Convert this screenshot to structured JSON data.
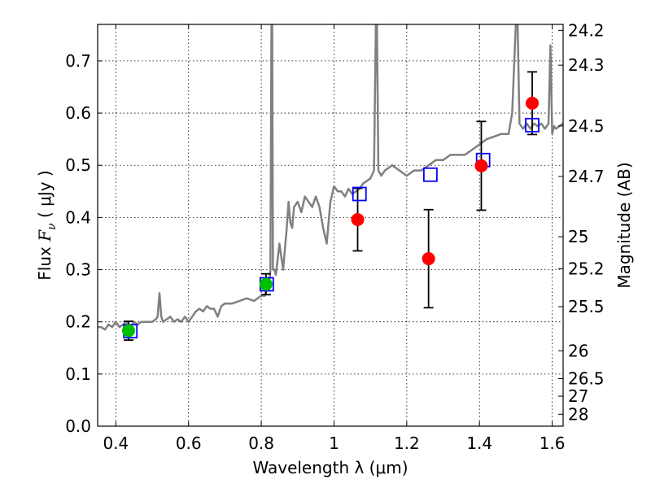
{
  "chart_data": {
    "type": "scatter",
    "xlabel": "Wavelength  λ (μm)",
    "ylabel_prefix": "Flux  ",
    "ylabel_var": "F",
    "ylabel_sub": "ν",
    "ylabel_suffix": "  ( μJy )",
    "y2label": "Magnitude (AB)",
    "xlim": [
      0.35,
      1.63
    ],
    "ylim": [
      0.0,
      0.77
    ],
    "grid": true,
    "x_ticks": [
      {
        "value": 0.4,
        "label": "0.4"
      },
      {
        "value": 0.6,
        "label": "0.6"
      },
      {
        "value": 0.8,
        "label": "0.8"
      },
      {
        "value": 1.0,
        "label": "1"
      },
      {
        "value": 1.2,
        "label": "1.2"
      },
      {
        "value": 1.4,
        "label": "1.4"
      },
      {
        "value": 1.6,
        "label": "1.6"
      }
    ],
    "y_ticks": [
      {
        "value": 0.0,
        "label": "0.0"
      },
      {
        "value": 0.1,
        "label": "0.1"
      },
      {
        "value": 0.2,
        "label": "0.2"
      },
      {
        "value": 0.3,
        "label": "0.3"
      },
      {
        "value": 0.4,
        "label": "0.4"
      },
      {
        "value": 0.5,
        "label": "0.5"
      },
      {
        "value": 0.6,
        "label": "0.6"
      },
      {
        "value": 0.7,
        "label": "0.7"
      }
    ],
    "magnitude_ticks": [
      {
        "mag": 24.2,
        "label": "24.2"
      },
      {
        "mag": 24.3,
        "label": "24.3"
      },
      {
        "mag": 24.5,
        "label": "24.5"
      },
      {
        "mag": 24.7,
        "label": "24.7"
      },
      {
        "mag": 25.0,
        "label": "25"
      },
      {
        "mag": 25.2,
        "label": "25.2"
      },
      {
        "mag": 25.5,
        "label": "25.5"
      },
      {
        "mag": 26.0,
        "label": "26"
      },
      {
        "mag": 26.5,
        "label": "26.5"
      },
      {
        "mag": 27.0,
        "label": "27"
      },
      {
        "mag": 28.0,
        "label": "28"
      }
    ],
    "spectrum": {
      "name": "model-spectrum",
      "color": "#808080",
      "x": [
        0.35,
        0.36,
        0.37,
        0.38,
        0.39,
        0.4,
        0.41,
        0.42,
        0.43,
        0.44,
        0.45,
        0.46,
        0.47,
        0.48,
        0.49,
        0.5,
        0.51,
        0.515,
        0.52,
        0.525,
        0.53,
        0.54,
        0.55,
        0.56,
        0.57,
        0.58,
        0.59,
        0.6,
        0.61,
        0.62,
        0.63,
        0.64,
        0.65,
        0.66,
        0.67,
        0.68,
        0.69,
        0.7,
        0.72,
        0.74,
        0.76,
        0.78,
        0.79,
        0.8,
        0.81,
        0.815,
        0.82,
        0.825,
        0.828,
        0.83,
        0.832,
        0.836,
        0.84,
        0.85,
        0.86,
        0.87,
        0.875,
        0.88,
        0.885,
        0.89,
        0.9,
        0.91,
        0.92,
        0.93,
        0.94,
        0.95,
        0.96,
        0.97,
        0.98,
        0.99,
        1.0,
        1.01,
        1.02,
        1.03,
        1.04,
        1.05,
        1.06,
        1.07,
        1.08,
        1.09,
        1.1,
        1.11,
        1.115,
        1.118,
        1.122,
        1.13,
        1.14,
        1.16,
        1.18,
        1.2,
        1.22,
        1.24,
        1.26,
        1.28,
        1.3,
        1.32,
        1.34,
        1.36,
        1.38,
        1.4,
        1.42,
        1.44,
        1.46,
        1.48,
        1.49,
        1.5,
        1.505,
        1.51,
        1.52,
        1.53,
        1.54,
        1.55,
        1.56,
        1.57,
        1.58,
        1.59,
        1.595,
        1.6,
        1.605,
        1.61,
        1.62,
        1.63
      ],
      "y": [
        0.19,
        0.19,
        0.185,
        0.195,
        0.19,
        0.2,
        0.19,
        0.195,
        0.2,
        0.19,
        0.2,
        0.195,
        0.2,
        0.2,
        0.2,
        0.2,
        0.205,
        0.21,
        0.255,
        0.21,
        0.2,
        0.205,
        0.21,
        0.2,
        0.205,
        0.2,
        0.21,
        0.2,
        0.21,
        0.22,
        0.225,
        0.22,
        0.23,
        0.225,
        0.225,
        0.21,
        0.23,
        0.235,
        0.235,
        0.24,
        0.245,
        0.24,
        0.245,
        0.25,
        0.25,
        0.27,
        0.26,
        0.3,
        0.77,
        0.77,
        0.3,
        0.3,
        0.29,
        0.35,
        0.3,
        0.38,
        0.43,
        0.39,
        0.38,
        0.42,
        0.43,
        0.41,
        0.44,
        0.43,
        0.42,
        0.44,
        0.42,
        0.38,
        0.35,
        0.43,
        0.46,
        0.45,
        0.45,
        0.44,
        0.455,
        0.445,
        0.45,
        0.455,
        0.465,
        0.47,
        0.475,
        0.49,
        0.77,
        0.77,
        0.49,
        0.48,
        0.49,
        0.5,
        0.49,
        0.48,
        0.49,
        0.49,
        0.5,
        0.51,
        0.51,
        0.52,
        0.52,
        0.52,
        0.53,
        0.54,
        0.55,
        0.555,
        0.56,
        0.56,
        0.6,
        0.77,
        0.77,
        0.58,
        0.57,
        0.58,
        0.57,
        0.58,
        0.575,
        0.58,
        0.57,
        0.58,
        0.73,
        0.56,
        0.575,
        0.57,
        0.575,
        0.58
      ]
    },
    "model_points": {
      "name": "model-photometry",
      "marker": "open-square",
      "color": "#0000ff",
      "points": [
        {
          "x": 0.44,
          "y": 0.182
        },
        {
          "x": 0.815,
          "y": 0.272
        },
        {
          "x": 1.07,
          "y": 0.445
        },
        {
          "x": 1.265,
          "y": 0.482
        },
        {
          "x": 1.41,
          "y": 0.51
        },
        {
          "x": 1.545,
          "y": 0.577
        }
      ]
    },
    "green_points": {
      "name": "observed-flux-green",
      "marker": "filled-circle",
      "color": "#00bf00",
      "points": [
        {
          "x": 0.435,
          "y": 0.183,
          "yerr": 0.018
        },
        {
          "x": 0.813,
          "y": 0.272,
          "yerr": 0.02
        }
      ]
    },
    "red_points": {
      "name": "observed-flux-red",
      "marker": "filled-circle",
      "color": "#ff0000",
      "points": [
        {
          "x": 1.065,
          "y": 0.396,
          "yerr": 0.06
        },
        {
          "x": 1.26,
          "y": 0.321,
          "yerr": 0.094
        },
        {
          "x": 1.405,
          "y": 0.499,
          "yerr": 0.085
        },
        {
          "x": 1.545,
          "y": 0.619,
          "yerr": 0.06
        }
      ]
    }
  }
}
